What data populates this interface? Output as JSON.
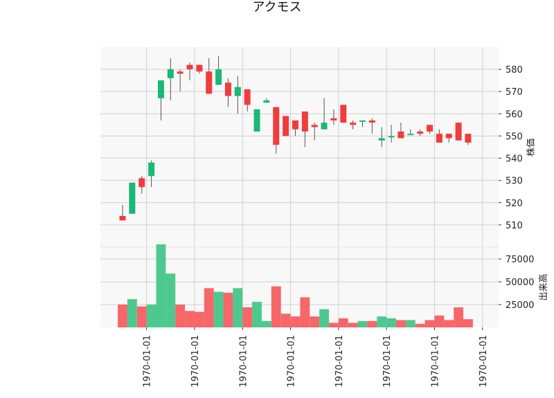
{
  "chart_data": {
    "type": "candlestick",
    "title": "アクモス",
    "price_ylabel": "株価",
    "volume_ylabel": "出来高",
    "price_ylim": [
      500,
      590
    ],
    "volume_ylim": [
      0,
      88000
    ],
    "price_ticks": [
      510,
      520,
      530,
      540,
      550,
      560,
      570,
      580
    ],
    "volume_ticks": [
      25000,
      50000,
      75000
    ],
    "volume_tick_labels": [
      "25000",
      "50000",
      "75000"
    ],
    "x_tick_labels": [
      "1970-01-01",
      "1970-01-01",
      "1970-01-01",
      "1970-01-01",
      "1970-01-01",
      "1970-01-01",
      "1970-01-01",
      "1970-01-01"
    ],
    "x_tick_positions": [
      2.5,
      7.5,
      12.5,
      17.5,
      22.5,
      27.5,
      32.5,
      37.5
    ],
    "grid": true,
    "up_color": "#1ab776",
    "down_color": "#f23b3b",
    "up_volume_color": "#4dc98f",
    "down_volume_color": "#f76668",
    "background_color": "#f8f8f8",
    "grid_color": "#d0d0d0",
    "candles": [
      {
        "open": 514,
        "high": 519,
        "low": 512,
        "close": 512,
        "volume": 25000
      },
      {
        "open": 515,
        "high": 529,
        "low": 515,
        "close": 529,
        "volume": 31000
      },
      {
        "open": 531,
        "high": 532,
        "low": 524,
        "close": 527,
        "volume": 23000
      },
      {
        "open": 532,
        "high": 539,
        "low": 527,
        "close": 538,
        "volume": 25000
      },
      {
        "open": 567,
        "high": 575,
        "low": 557,
        "close": 575,
        "volume": 91000
      },
      {
        "open": 576,
        "high": 585,
        "low": 566,
        "close": 580,
        "volume": 59000
      },
      {
        "open": 579,
        "high": 580,
        "low": 570,
        "close": 578,
        "volume": 25000
      },
      {
        "open": 582,
        "high": 583,
        "low": 575,
        "close": 580,
        "volume": 18000
      },
      {
        "open": 582,
        "high": 582,
        "low": 578,
        "close": 579,
        "volume": 17000
      },
      {
        "open": 579,
        "high": 585,
        "low": 569,
        "close": 569,
        "volume": 43000
      },
      {
        "open": 573,
        "high": 586,
        "low": 573,
        "close": 580,
        "volume": 39000
      },
      {
        "open": 574,
        "high": 576,
        "low": 563,
        "close": 568,
        "volume": 38000
      },
      {
        "open": 568,
        "high": 577,
        "low": 560,
        "close": 572,
        "volume": 43000
      },
      {
        "open": 571,
        "high": 571,
        "low": 561,
        "close": 564,
        "volume": 22000
      },
      {
        "open": 552,
        "high": 562,
        "low": 552,
        "close": 562,
        "volume": 28000
      },
      {
        "open": 565,
        "high": 567,
        "low": 565,
        "close": 566,
        "volume": 7000
      },
      {
        "open": 563,
        "high": 563,
        "low": 542,
        "close": 546,
        "volume": 45000
      },
      {
        "open": 559,
        "high": 559,
        "low": 550,
        "close": 550,
        "volume": 15000
      },
      {
        "open": 557,
        "high": 557,
        "low": 550,
        "close": 553,
        "volume": 12000
      },
      {
        "open": 561,
        "high": 561,
        "low": 545,
        "close": 552,
        "volume": 33000
      },
      {
        "open": 555,
        "high": 556,
        "low": 548,
        "close": 554,
        "volume": 12000
      },
      {
        "open": 553,
        "high": 567,
        "low": 553,
        "close": 556,
        "volume": 20000
      },
      {
        "open": 558,
        "high": 562,
        "low": 555,
        "close": 557,
        "volume": 5000
      },
      {
        "open": 564,
        "high": 564,
        "low": 556,
        "close": 556,
        "volume": 10000
      },
      {
        "open": 556,
        "high": 557,
        "low": 553,
        "close": 555,
        "volume": 5000
      },
      {
        "open": 557,
        "high": 557,
        "low": 554,
        "close": 557,
        "volume": 7000
      },
      {
        "open": 557,
        "high": 558,
        "low": 551,
        "close": 556,
        "volume": 7000
      },
      {
        "open": 548,
        "high": 554,
        "low": 545,
        "close": 549,
        "volume": 12000
      },
      {
        "open": 550,
        "high": 555,
        "low": 547,
        "close": 550,
        "volume": 10000
      },
      {
        "open": 552,
        "high": 556,
        "low": 549,
        "close": 549,
        "volume": 8000
      },
      {
        "open": 551,
        "high": 553,
        "low": 551,
        "close": 551,
        "volume": 8000
      },
      {
        "open": 552,
        "high": 553,
        "low": 550,
        "close": 551,
        "volume": 4000
      },
      {
        "open": 555,
        "high": 555,
        "low": 551,
        "close": 552,
        "volume": 8000
      },
      {
        "open": 551,
        "high": 553,
        "low": 547,
        "close": 547,
        "volume": 13000
      },
      {
        "open": 551,
        "high": 551,
        "low": 547,
        "close": 549,
        "volume": 8000
      },
      {
        "open": 556,
        "high": 556,
        "low": 548,
        "close": 548,
        "volume": 22000
      },
      {
        "open": 551,
        "high": 551,
        "low": 546,
        "close": 547,
        "volume": 9000
      }
    ]
  }
}
